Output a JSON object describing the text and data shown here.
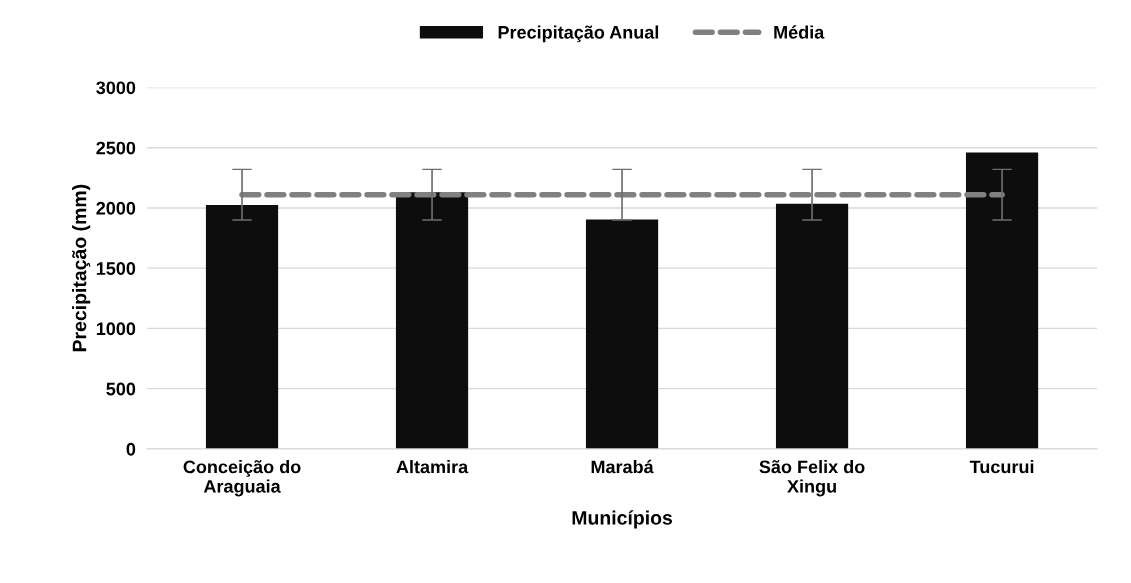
{
  "chart_data": {
    "type": "bar",
    "xlabel": "Municípios",
    "ylabel": "Precipitação (mm)",
    "categories": [
      "Conceição do\nAraguaia",
      "Altamira",
      "Marabá",
      "São Felix do\nXingu",
      "Tucurui"
    ],
    "series": [
      {
        "name": "Precipitação Anual",
        "color": "#0d0d0d",
        "values": [
          2025,
          2130,
          1905,
          2035,
          2460
        ]
      },
      {
        "name": "Média",
        "type": "line",
        "color": "#808080",
        "line_style": "dashed",
        "values": [
          2110,
          2110,
          2110,
          2110,
          2110
        ],
        "errors": [
          210,
          210,
          210,
          210,
          210
        ]
      }
    ],
    "ylim": [
      0,
      3000
    ],
    "yticks": [
      0,
      500,
      1000,
      1500,
      2000,
      2500,
      3000
    ],
    "grid": "y",
    "legend": "top"
  }
}
